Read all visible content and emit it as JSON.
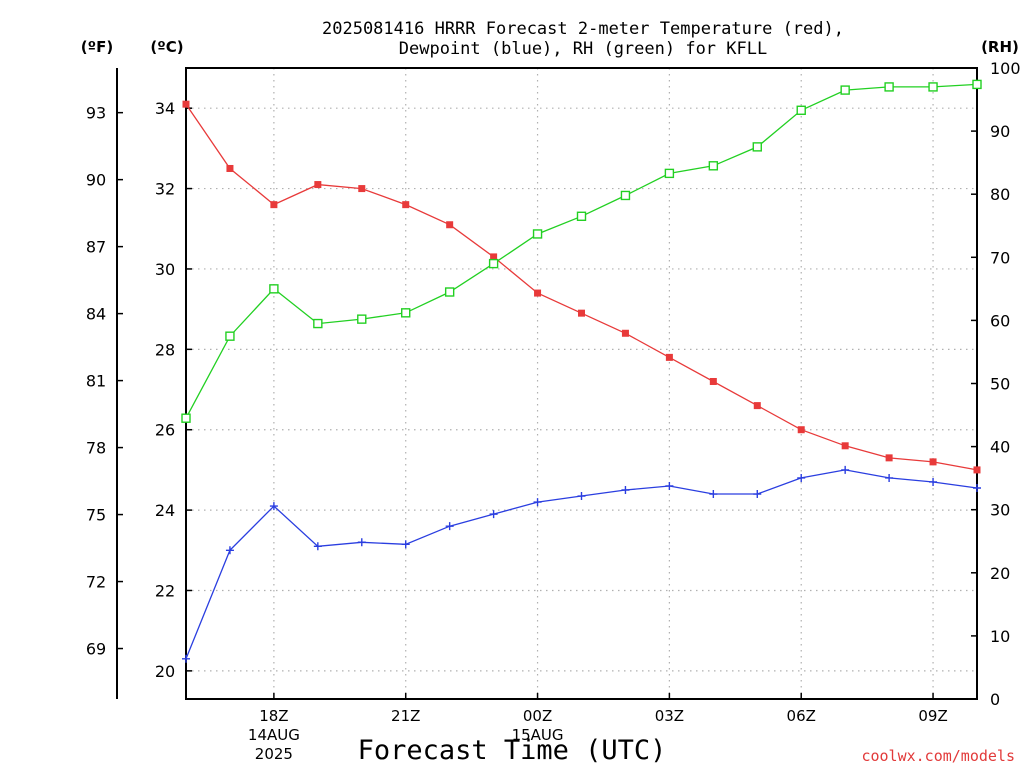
{
  "chart_data": {
    "type": "line",
    "title_line1": "2025081416 HRRR Forecast 2-meter Temperature (red),",
    "title_line2": "Dewpoint (blue), RH (green) for KFLL",
    "unit_f": "(ºF)",
    "unit_c": "(ºC)",
    "unit_rh": "(RH)",
    "xlabel": "Forecast Time (UTC)",
    "credit": "coolwx.com/models",
    "x_hours": [
      16,
      17,
      18,
      19,
      20,
      21,
      22,
      23,
      24,
      25,
      26,
      27,
      28,
      29,
      30,
      31,
      32,
      33,
      34
    ],
    "xlim": [
      16,
      34
    ],
    "ylim_c": [
      19.3,
      35.0
    ],
    "ylim_rh": [
      0,
      100
    ],
    "x_ticks": [
      {
        "hour": 18,
        "lines": [
          "18Z",
          "14AUG",
          "2025"
        ]
      },
      {
        "hour": 21,
        "lines": [
          "21Z"
        ]
      },
      {
        "hour": 24,
        "lines": [
          "00Z",
          "15AUG"
        ]
      },
      {
        "hour": 27,
        "lines": [
          "03Z"
        ]
      },
      {
        "hour": 30,
        "lines": [
          "06Z"
        ]
      },
      {
        "hour": 33,
        "lines": [
          "09Z"
        ]
      }
    ],
    "c_ticks": [
      "20",
      "22",
      "24",
      "26",
      "28",
      "30",
      "32",
      "34"
    ],
    "f_ticks": [
      "69",
      "72",
      "75",
      "78",
      "81",
      "84",
      "87",
      "90",
      "93"
    ],
    "rh_ticks": [
      "0",
      "10",
      "20",
      "30",
      "40",
      "50",
      "60",
      "70",
      "80",
      "90",
      "100"
    ],
    "grid": true,
    "series": [
      {
        "name": "Temperature",
        "color": "#e83a3a",
        "marker": "filled-square",
        "axis": "c",
        "values": [
          34.1,
          32.5,
          31.6,
          32.1,
          32.0,
          31.6,
          31.1,
          30.3,
          29.4,
          28.9,
          28.4,
          27.8,
          27.2,
          26.6,
          26.0,
          25.6,
          25.3,
          25.2,
          25.0
        ]
      },
      {
        "name": "Dewpoint",
        "color": "#2a3ee0",
        "marker": "plus",
        "axis": "c",
        "values": [
          20.3,
          23.0,
          24.1,
          23.1,
          23.2,
          23.15,
          23.6,
          23.9,
          24.2,
          24.35,
          24.5,
          24.6,
          24.4,
          24.4,
          24.8,
          25.0,
          24.8,
          24.7,
          24.55
        ]
      },
      {
        "name": "RH",
        "color": "#22d022",
        "marker": "open-square",
        "axis": "rh",
        "values": [
          44.5,
          57.5,
          65,
          59.5,
          60.2,
          61.2,
          64.5,
          69,
          73.7,
          76.5,
          79.8,
          83.3,
          84.5,
          87.5,
          93.3,
          96.5,
          97.0,
          97.0,
          97.4
        ]
      }
    ]
  }
}
